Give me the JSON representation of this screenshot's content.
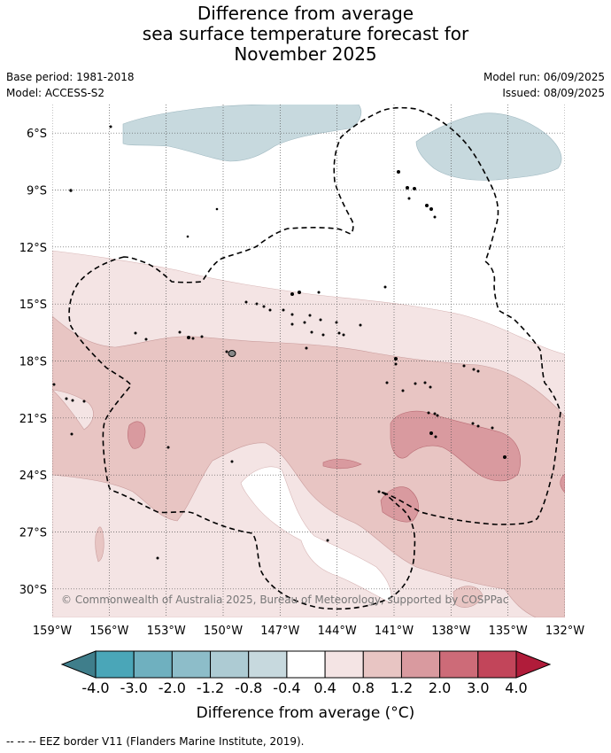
{
  "title_lines": [
    "Difference from average",
    "sea surface temperature forecast for",
    "November 2025"
  ],
  "meta": {
    "base_period": "Base period: 1981-2018",
    "model": "Model: ACCESS-S2",
    "model_run": "Model run: 06/09/2025",
    "issued": "Issued: 08/09/2025"
  },
  "map": {
    "lon_range": [
      -159,
      -132
    ],
    "lat_range": [
      -31.5,
      -4.5
    ],
    "lon_ticks": [
      "159°W",
      "156°W",
      "153°W",
      "150°W",
      "147°W",
      "144°W",
      "141°W",
      "138°W",
      "135°W",
      "132°W"
    ],
    "lat_ticks": [
      "6°S",
      "9°S",
      "12°S",
      "15°S",
      "18°S",
      "21°S",
      "24°S",
      "27°S",
      "30°S"
    ],
    "copyright": "© Commonwealth of Australia 2025, Bureau of Meteorology, supported by COSPPac",
    "grid": "dotted",
    "eez_border": "dashed"
  },
  "colorbar": {
    "labels": [
      "-4.0",
      "-3.0",
      "-2.0",
      "-1.2",
      "-0.8",
      "-0.4",
      "0.4",
      "0.8",
      "1.2",
      "2.0",
      "3.0",
      "4.0"
    ],
    "colors": [
      "#3f7e8b",
      "#4aa6b8",
      "#6fb0bf",
      "#8dbdc9",
      "#adcbd3",
      "#c7d9de",
      "#ffffff",
      "#f4e4e4",
      "#e8c5c3",
      "#d99a9f",
      "#cd6b78",
      "#c2455a",
      "#b01c3a"
    ],
    "title": "Difference from average (°C)"
  },
  "footnote": "--  --  -- EEZ border V11 (Flanders Marine Institute, 2019)."
}
